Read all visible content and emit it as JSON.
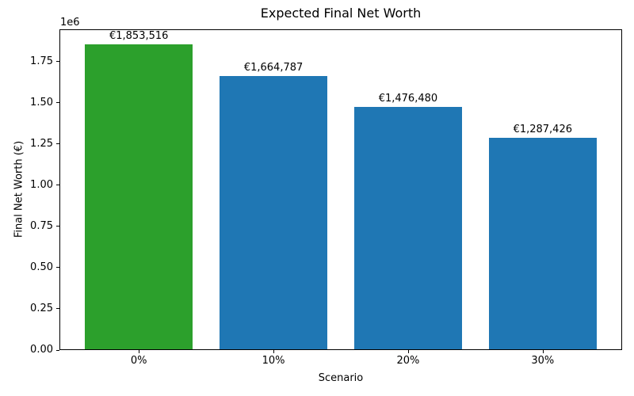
{
  "chart_data": {
    "type": "bar",
    "title": "Expected Final Net Worth",
    "xlabel": "Scenario",
    "ylabel": "Final Net Worth (€)",
    "offset_text": "1e6",
    "categories": [
      "0%",
      "10%",
      "20%",
      "30%"
    ],
    "values": [
      1853516,
      1664787,
      1476480,
      1287426
    ],
    "bar_labels": [
      "€1,853,516",
      "€1,664,787",
      "€1,476,480",
      "€1,287,426"
    ],
    "bar_colors": [
      "#2ca02c",
      "#1f77b4",
      "#1f77b4",
      "#1f77b4"
    ],
    "ylim": [
      0,
      1946192
    ],
    "yticks": [
      0,
      250000,
      500000,
      750000,
      1000000,
      1250000,
      1500000,
      1750000
    ],
    "ytick_labels": [
      "0.00",
      "0.25",
      "0.50",
      "0.75",
      "1.00",
      "1.25",
      "1.50",
      "1.75"
    ],
    "bar_width_units": 0.8,
    "grid": false,
    "legend": null
  },
  "colors": {
    "highlight_bar": "#2ca02c",
    "default_bar": "#1f77b4",
    "axis": "#000000",
    "background": "#ffffff"
  }
}
